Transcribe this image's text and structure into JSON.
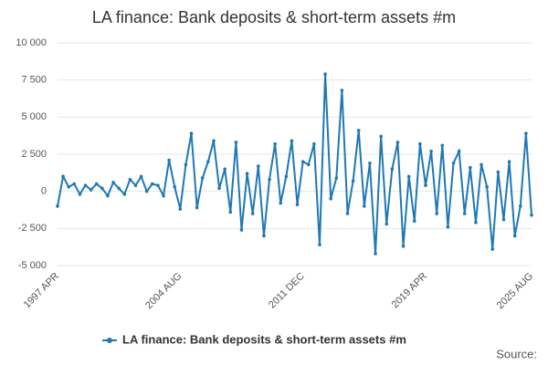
{
  "chart_data": {
    "type": "line",
    "title": "LA finance: Bank deposits & short-term assets #m",
    "source": "Source:",
    "categories": [
      "1997 APR",
      null,
      null,
      null,
      null,
      null,
      null,
      null,
      null,
      null,
      null,
      null,
      null,
      null,
      null,
      null,
      null,
      null,
      null,
      null,
      null,
      null,
      "2004 AUG",
      null,
      null,
      null,
      null,
      null,
      null,
      null,
      null,
      null,
      null,
      null,
      null,
      null,
      null,
      null,
      null,
      null,
      null,
      null,
      null,
      null,
      "2011 DEC",
      null,
      null,
      null,
      null,
      null,
      null,
      null,
      null,
      null,
      null,
      null,
      null,
      null,
      null,
      null,
      null,
      null,
      null,
      null,
      null,
      null,
      "2019 APR",
      null,
      null,
      null,
      null,
      null,
      null,
      null,
      null,
      null,
      null,
      null,
      null,
      null,
      null,
      null,
      null,
      null,
      null,
      "2025 AUG"
    ],
    "series": [
      {
        "name": "LA finance: Bank deposits & short-term assets #m",
        "color": "#1f78b4",
        "values": [
          -1000,
          1000,
          300,
          500,
          -200,
          400,
          100,
          500,
          200,
          -300,
          600,
          200,
          -200,
          800,
          400,
          1000,
          0,
          500,
          400,
          -300,
          2100,
          300,
          -1200,
          1800,
          3900,
          -1100,
          900,
          2000,
          3400,
          200,
          1500,
          -1400,
          3300,
          -2600,
          1200,
          -1500,
          1700,
          -3000,
          800,
          3200,
          -800,
          1000,
          3400,
          -900,
          2000,
          1800,
          3200,
          -3600,
          7900,
          -500,
          900,
          6800,
          -1500,
          700,
          4100,
          -1000,
          1900,
          -4200,
          3700,
          -2200,
          1500,
          3300,
          -3700,
          1000,
          -2000,
          3200,
          400,
          2700,
          -1500,
          3100,
          -2400,
          1900,
          2700,
          -1500,
          1600,
          -2100,
          1800,
          300,
          -3900,
          1300,
          -1900,
          2000,
          -3000,
          -1000,
          3900,
          -1600
        ]
      }
    ],
    "ylim": [
      -5000,
      10000
    ],
    "yticks": [
      {
        "value": -5000,
        "label": "-5 000"
      },
      {
        "value": -2500,
        "label": "-2 500"
      },
      0,
      {
        "value": 2500,
        "label": "2 500"
      },
      {
        "value": 5000,
        "label": "5 000"
      },
      {
        "value": 7500,
        "label": "7 500"
      },
      {
        "value": 10000,
        "label": "10 000"
      }
    ],
    "grid": true
  }
}
